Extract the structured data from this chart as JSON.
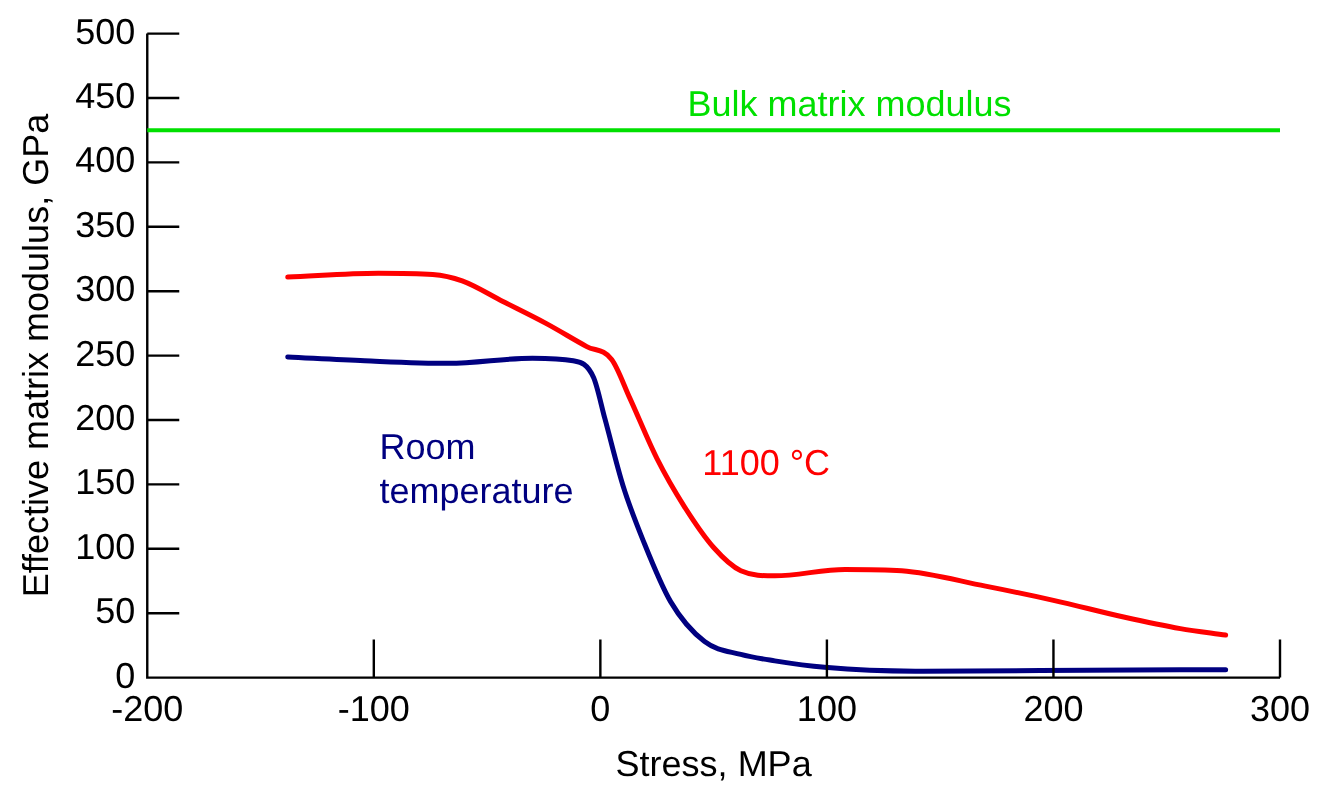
{
  "chart_data": {
    "type": "line",
    "xlabel": "Stress, MPa",
    "ylabel": "Effective matrix modulus, GPa",
    "xlim": [
      -200,
      300
    ],
    "xticks": [
      -200,
      -100,
      0,
      100,
      200,
      300
    ],
    "ylim": [
      0,
      500
    ],
    "yticks": [
      0,
      50,
      100,
      150,
      200,
      250,
      300,
      350,
      400,
      450,
      500
    ],
    "grid": false,
    "legend": false,
    "marker": "none",
    "line_style": "solid",
    "series": [
      {
        "name": "1100 °C",
        "color": "#ff0000",
        "x": [
          -138,
          -98,
          -74,
          -61,
          -43,
          -24,
          -6,
          5,
          13,
          25,
          37,
          50,
          62,
          77,
          108,
          133,
          170,
          200,
          231,
          256,
          276
        ],
        "values": [
          311,
          314,
          313,
          308,
          292,
          275,
          257,
          247,
          217,
          170,
          133,
          101,
          83,
          79,
          84,
          83,
          71,
          60,
          47,
          38,
          33
        ]
      },
      {
        "name": "Room temperature",
        "color": "#000080",
        "x": [
          -138,
          -104,
          -67,
          -30,
          -12,
          -3,
          2,
          10,
          19,
          31,
          46,
          62,
          77,
          99,
          139,
          256,
          276
        ],
        "values": [
          249,
          246,
          244,
          248,
          246,
          233,
          201,
          149,
          106,
          59,
          28,
          18,
          13,
          8,
          5,
          6,
          6
        ]
      }
    ],
    "ref_lines": [
      {
        "axis": "y",
        "value": 425,
        "label": "Bulk matrix modulus",
        "color": "#00e000"
      }
    ]
  }
}
